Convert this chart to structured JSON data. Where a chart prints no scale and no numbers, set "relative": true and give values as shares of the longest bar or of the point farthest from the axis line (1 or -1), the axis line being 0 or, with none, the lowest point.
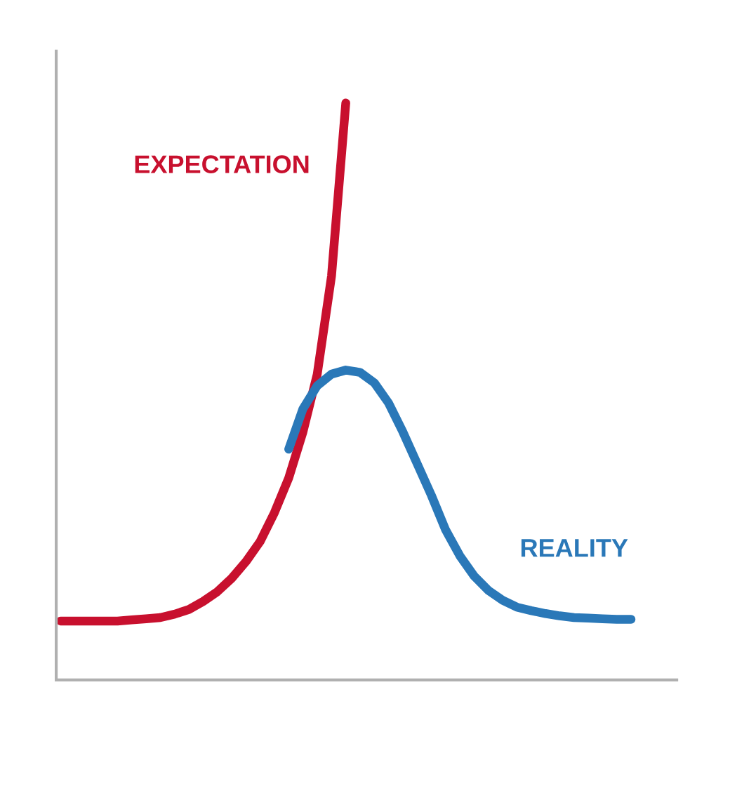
{
  "chart_data": {
    "type": "line",
    "relative": true,
    "legend": false,
    "marker": "none",
    "line_style": "solid",
    "categories": [
      null,
      null,
      null,
      null,
      null,
      null,
      null,
      null,
      null,
      null,
      null,
      null,
      null,
      null,
      null,
      null,
      null,
      null,
      null,
      null,
      null,
      null,
      null,
      null,
      null,
      null,
      null,
      null,
      null,
      null,
      null,
      null,
      null,
      null,
      null,
      null,
      null,
      null,
      null,
      null,
      null
    ],
    "series": [
      {
        "name": "EXPECTATION",
        "color": "#c8102e",
        "values": [
          0.102,
          0.102,
          0.102,
          0.102,
          0.102,
          0.104,
          0.106,
          0.108,
          0.114,
          0.122,
          0.136,
          0.153,
          0.176,
          0.205,
          0.24,
          0.29,
          0.35,
          0.43,
          0.53,
          0.7,
          1.0,
          null,
          null,
          null,
          null,
          null,
          null,
          null,
          null,
          null,
          null,
          null,
          null,
          null,
          null,
          null,
          null,
          null,
          null,
          null,
          null
        ]
      },
      {
        "name": "REALITY",
        "color": "#2a78b8",
        "values": [
          null,
          null,
          null,
          null,
          null,
          null,
          null,
          null,
          null,
          null,
          null,
          null,
          null,
          null,
          null,
          null,
          0.4,
          0.47,
          0.51,
          0.53,
          0.537,
          0.533,
          0.515,
          0.48,
          0.43,
          0.375,
          0.32,
          0.26,
          0.215,
          0.18,
          0.155,
          0.138,
          0.126,
          0.12,
          0.115,
          0.111,
          0.108,
          0.107,
          0.106,
          0.105,
          0.105
        ]
      }
    ]
  }
}
